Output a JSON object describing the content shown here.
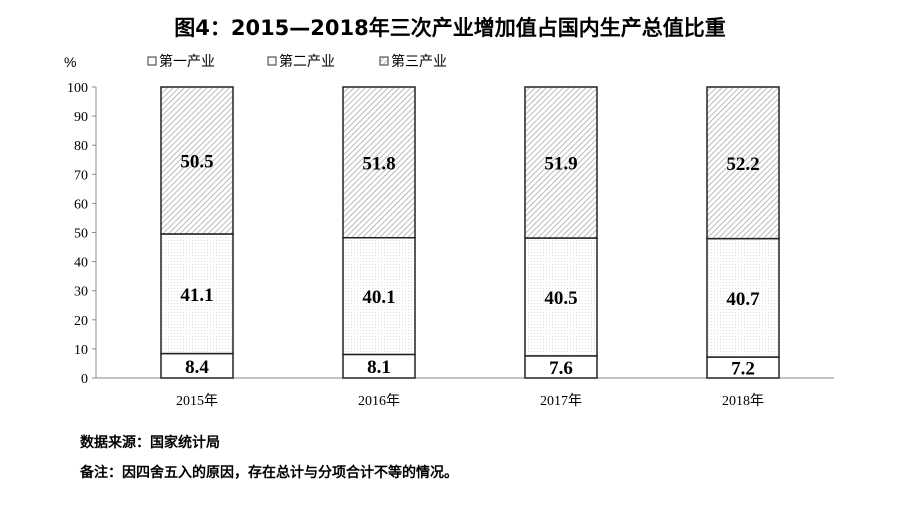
{
  "chart_data": {
    "type": "bar",
    "stacked": true,
    "title": "图4：2015—2018年三次产业增加值占国内生产总值比重",
    "ylabel": "%",
    "ylim": [
      0,
      100
    ],
    "yticks": [
      0,
      10,
      20,
      30,
      40,
      50,
      60,
      70,
      80,
      90,
      100
    ],
    "categories": [
      "2015年",
      "2016年",
      "2017年",
      "2018年"
    ],
    "legend_position": "top",
    "grid": false,
    "series": [
      {
        "name": "第一产业",
        "values": [
          8.4,
          8.1,
          7.6,
          7.2
        ],
        "pattern": "none"
      },
      {
        "name": "第二产业",
        "values": [
          41.1,
          40.1,
          40.5,
          40.7
        ],
        "pattern": "dots"
      },
      {
        "name": "第三产业",
        "values": [
          50.5,
          51.8,
          51.9,
          52.2
        ],
        "pattern": "diagonal"
      }
    ]
  },
  "notes": {
    "source": "数据来源：国家统计局",
    "remark": "备注：因四舍五入的原因，存在总计与分项合计不等的情况。"
  }
}
